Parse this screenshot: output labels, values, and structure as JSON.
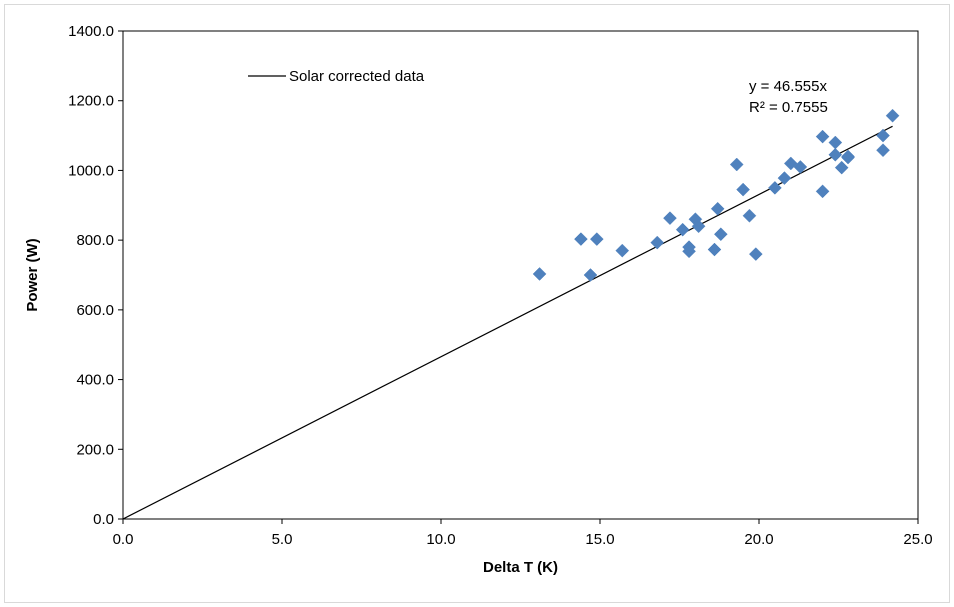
{
  "chart_data": {
    "type": "scatter",
    "xlabel": "Delta T (K)",
    "ylabel": "Power (W)",
    "xlim": [
      0,
      25
    ],
    "ylim": [
      0,
      1400
    ],
    "x_ticks": [
      "0.0",
      "5.0",
      "10.0",
      "15.0",
      "20.0",
      "25.0"
    ],
    "y_ticks": [
      "0.0",
      "200.0",
      "400.0",
      "600.0",
      "800.0",
      "1000.0",
      "1200.0",
      "1400.0"
    ],
    "grid": false,
    "legend": {
      "position": "top-left",
      "entries": [
        "Solar corrected data"
      ]
    },
    "trendline": {
      "type": "linear-through-origin",
      "slope": 46.555,
      "equation": "y = 46.555x",
      "r2": "R² = 0.7555",
      "x_range": [
        0,
        24.2
      ]
    },
    "marker_color": "#4f81bd",
    "series": [
      {
        "points": [
          [
            13.1,
            703
          ],
          [
            14.4,
            803
          ],
          [
            14.7,
            700
          ],
          [
            14.9,
            803
          ],
          [
            15.7,
            770
          ],
          [
            16.8,
            793
          ],
          [
            17.2,
            863
          ],
          [
            17.6,
            830
          ],
          [
            17.8,
            780
          ],
          [
            17.8,
            768
          ],
          [
            18.0,
            860
          ],
          [
            18.1,
            840
          ],
          [
            18.6,
            773
          ],
          [
            18.7,
            890
          ],
          [
            18.8,
            817
          ],
          [
            19.3,
            1017
          ],
          [
            19.5,
            945
          ],
          [
            19.7,
            870
          ],
          [
            19.9,
            760
          ],
          [
            20.5,
            950
          ],
          [
            20.8,
            978
          ],
          [
            21.0,
            1020
          ],
          [
            21.3,
            1010
          ],
          [
            22.0,
            1097
          ],
          [
            22.0,
            940
          ],
          [
            22.4,
            1080
          ],
          [
            22.4,
            1045
          ],
          [
            22.6,
            1008
          ],
          [
            22.8,
            1040
          ],
          [
            22.8,
            1037
          ],
          [
            23.9,
            1100
          ],
          [
            23.9,
            1058
          ],
          [
            24.2,
            1157
          ]
        ]
      }
    ]
  }
}
